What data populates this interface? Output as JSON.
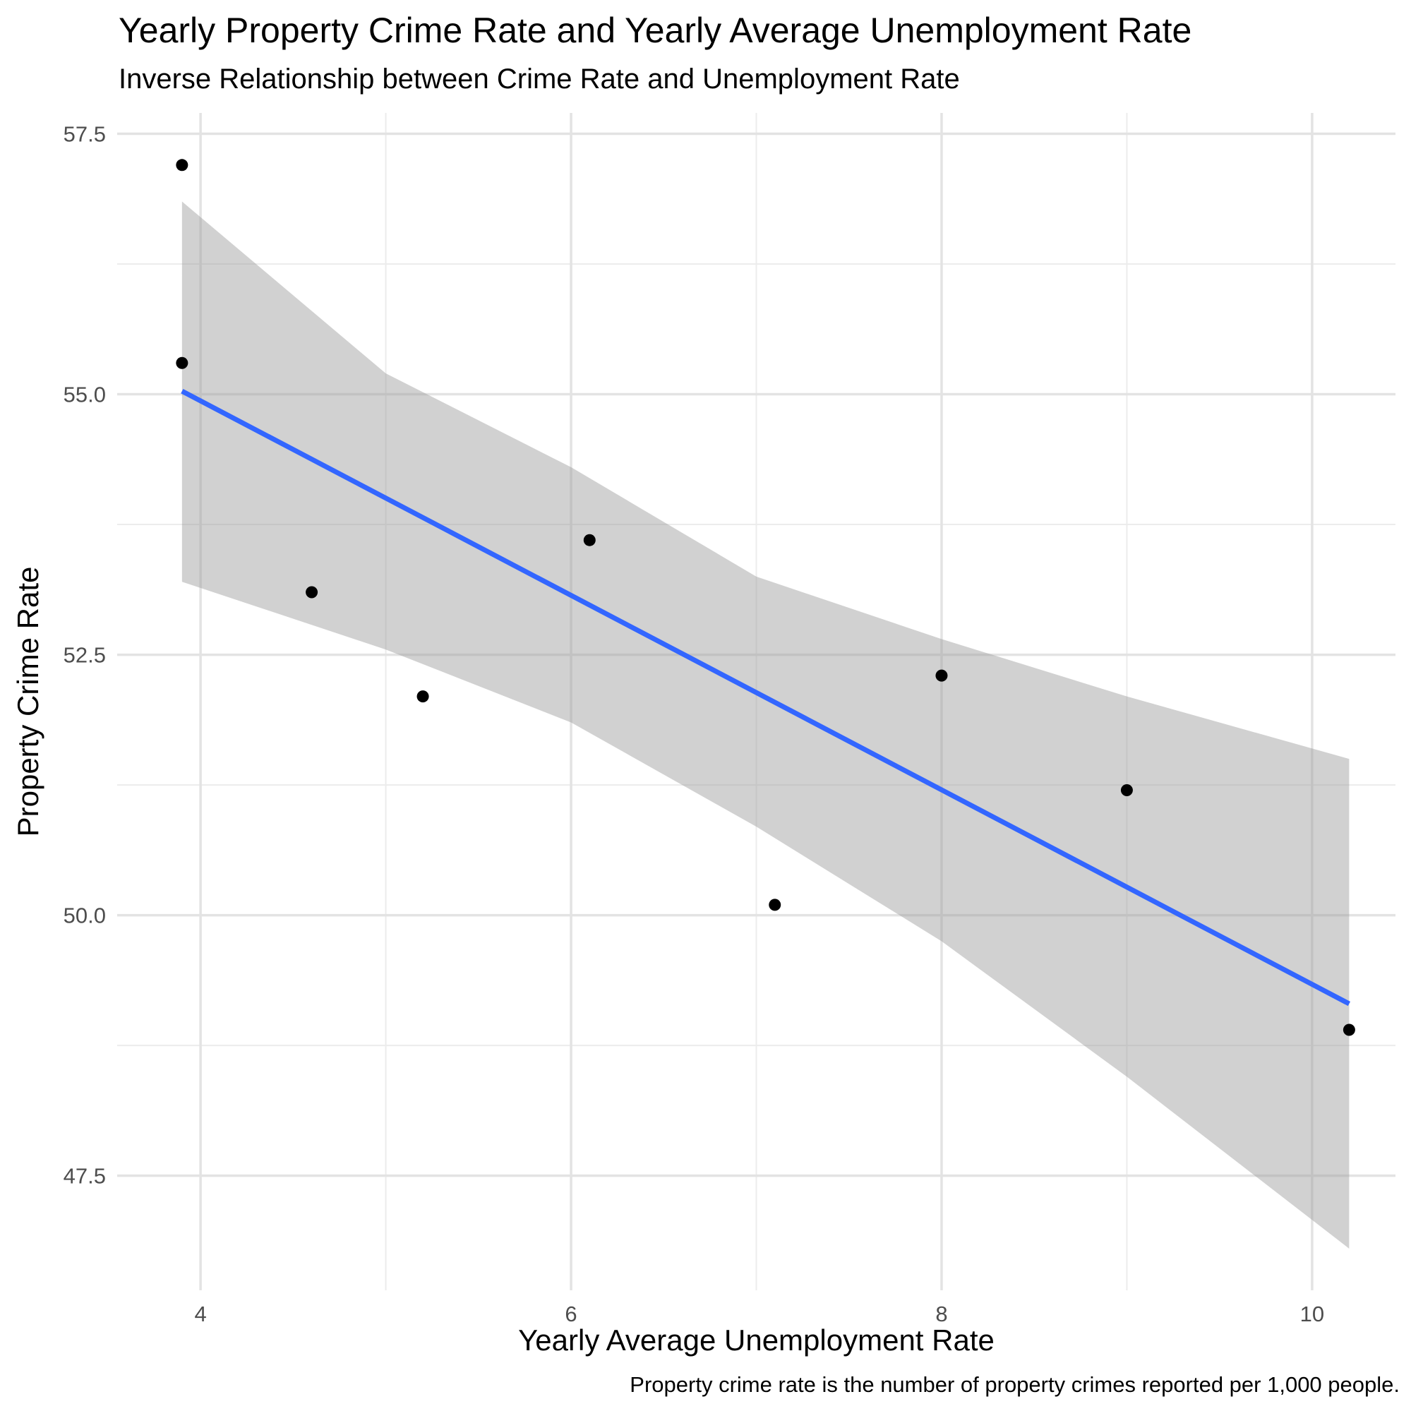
{
  "chart_data": {
    "type": "scatter",
    "title": "Yearly Property Crime Rate and Yearly Average Unemployment Rate",
    "subtitle": "Inverse Relationship between Crime Rate and Unemployment Rate",
    "xlabel": "Yearly Average Unemployment Rate",
    "ylabel": "Property Crime Rate",
    "caption": "Property crime rate is the number of property crimes reported per 1,000 people.",
    "xlim": [
      3.55,
      10.45
    ],
    "ylim": [
      46.4,
      57.7
    ],
    "x_ticks": [
      4,
      6,
      8,
      10
    ],
    "x_tick_labels": [
      "4",
      "6",
      "8",
      "10"
    ],
    "y_ticks": [
      47.5,
      50.0,
      52.5,
      55.0,
      57.5
    ],
    "y_tick_labels": [
      "47.5",
      "50.0",
      "52.5",
      "55.0",
      "57.5"
    ],
    "grid": true,
    "points": [
      {
        "x": 3.9,
        "y": 57.2
      },
      {
        "x": 3.9,
        "y": 55.3
      },
      {
        "x": 4.6,
        "y": 53.1
      },
      {
        "x": 5.2,
        "y": 52.1
      },
      {
        "x": 6.1,
        "y": 53.6
      },
      {
        "x": 7.1,
        "y": 50.1
      },
      {
        "x": 8.0,
        "y": 52.3
      },
      {
        "x": 9.0,
        "y": 51.2
      },
      {
        "x": 10.2,
        "y": 48.9
      }
    ],
    "fit_line": {
      "type": "linear",
      "start": {
        "x": 3.9,
        "y": 55.03
      },
      "end": {
        "x": 10.2,
        "y": 49.15
      },
      "color": "#3366FF"
    },
    "confidence_band": {
      "color": "#999999",
      "x": [
        3.9,
        5.0,
        6.0,
        7.0,
        8.0,
        9.0,
        10.2
      ],
      "upper": [
        56.85,
        55.2,
        54.3,
        53.25,
        52.65,
        52.1,
        51.5
      ],
      "lower": [
        53.2,
        52.55,
        51.85,
        50.85,
        49.75,
        48.45,
        46.8
      ]
    }
  }
}
